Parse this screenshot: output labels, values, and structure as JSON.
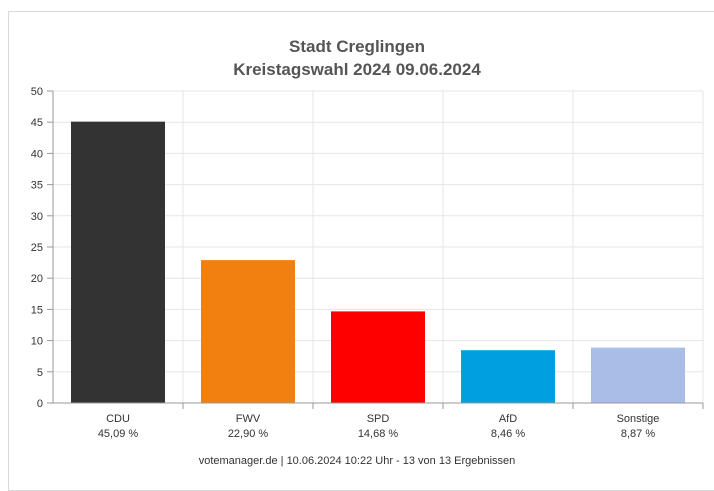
{
  "chart_data": {
    "type": "bar",
    "title": "Stadt Creglingen",
    "subtitle": "Kreistagswahl 2024 09.06.2024",
    "categories": [
      "CDU",
      "FWV",
      "SPD",
      "AfD",
      "Sonstige"
    ],
    "values": [
      45.09,
      22.9,
      14.68,
      8.46,
      8.87
    ],
    "value_labels": [
      "45,09 %",
      "22,90 %",
      "14,68 %",
      "8,46 %",
      "8,87 %"
    ],
    "colors": [
      "#333333",
      "#f28010",
      "#ff0000",
      "#00a0e0",
      "#a9bde6"
    ],
    "ylim": [
      0,
      50
    ],
    "yticks": [
      0,
      5,
      10,
      15,
      20,
      25,
      30,
      35,
      40,
      45,
      50
    ],
    "grid": true,
    "xlabel": "",
    "ylabel": ""
  },
  "footer": "votemanager.de | 10.06.2024 10:22 Uhr - 13 von 13 Ergebnissen"
}
